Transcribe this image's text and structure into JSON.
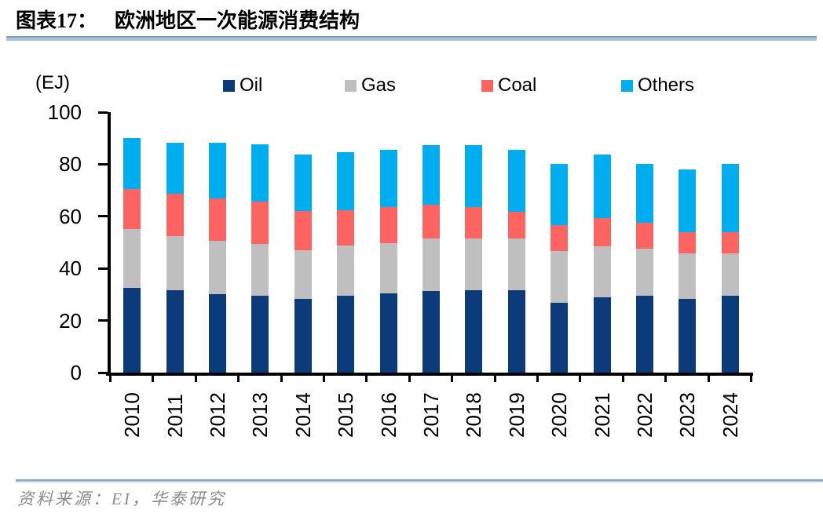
{
  "header": {
    "figure_label": "图表17：",
    "title": "欧洲地区一次能源消费结构"
  },
  "footer": {
    "source_note": "资料来源：EI，华泰研究"
  },
  "chart_data": {
    "type": "bar",
    "stacked": true,
    "unit_label": "(EJ)",
    "categories": [
      "2010",
      "2011",
      "2012",
      "2013",
      "2014",
      "2015",
      "2016",
      "2017",
      "2018",
      "2019",
      "2020",
      "2021",
      "2022",
      "2023",
      "2024"
    ],
    "series": [
      {
        "name": "Oil",
        "color": "#0c3b7b",
        "values": [
          32.5,
          31.5,
          30.0,
          29.6,
          28.4,
          29.6,
          30.3,
          31.3,
          31.6,
          31.6,
          26.9,
          28.8,
          29.6,
          28.4,
          29.4
        ]
      },
      {
        "name": "Gas",
        "color": "#bfbfbf",
        "values": [
          22.7,
          21.0,
          20.5,
          19.8,
          18.5,
          19.1,
          19.4,
          20.2,
          19.9,
          19.9,
          19.8,
          19.7,
          17.9,
          17.5,
          16.3
        ]
      },
      {
        "name": "Coal",
        "color": "#fb6461",
        "values": [
          15.2,
          16.3,
          16.5,
          16.4,
          15.1,
          13.6,
          14.0,
          13.0,
          12.2,
          10.4,
          10.0,
          10.9,
          10.0,
          8.0,
          8.3
        ]
      },
      {
        "name": "Others",
        "color": "#00aeef",
        "values": [
          19.7,
          19.6,
          21.4,
          21.8,
          21.6,
          22.5,
          21.8,
          22.8,
          23.6,
          23.7,
          23.4,
          24.2,
          22.6,
          24.2,
          26.1
        ]
      }
    ],
    "ylim": [
      0,
      100
    ],
    "yticks": [
      0,
      20,
      40,
      60,
      80,
      100
    ],
    "legend_position": "top",
    "grid": false,
    "axis_color": "#000000"
  }
}
